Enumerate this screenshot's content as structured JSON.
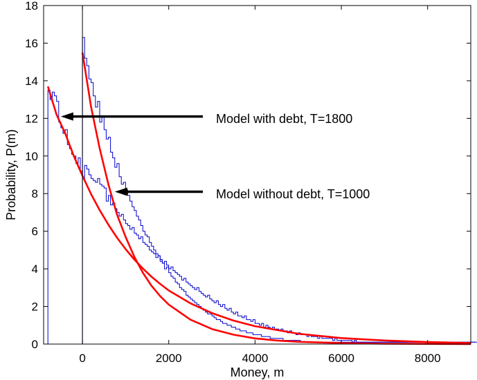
{
  "chart_data": {
    "type": "line",
    "title": "",
    "xlabel": "Money, m",
    "ylabel": "Probability, P(m)",
    "xlim": [
      -900,
      9000
    ],
    "ylim": [
      0,
      18
    ],
    "x_ticks": [
      0,
      2000,
      4000,
      6000,
      8000
    ],
    "y_ticks": [
      0,
      2,
      4,
      6,
      8,
      10,
      12,
      14,
      16,
      18
    ],
    "grid": false,
    "reference_line_x": 0,
    "colors": {
      "histogram": "#0000cc",
      "fit": "#ff0000",
      "axes": "#000000"
    },
    "series": [
      {
        "kind": "histogram",
        "x_start": -800,
        "bin_width": 50,
        "values": [
          13.5,
          13.0,
          13.4,
          13.2,
          12.9,
          11.8,
          11.5,
          11.2,
          11.4,
          10.6,
          10.4,
          10.1,
          10.0,
          9.6,
          9.9,
          9.2,
          8.8,
          9.5,
          9.3,
          9.0,
          8.8,
          8.7,
          8.6,
          8.8,
          8.5,
          8.4,
          8.3,
          7.6,
          7.9,
          7.4,
          7.5,
          7.2,
          7.0,
          6.8,
          6.9,
          6.6,
          6.4,
          6.3,
          6.1,
          6.2,
          5.9,
          5.8,
          5.6,
          5.7,
          5.4,
          5.3,
          5.2,
          5.0,
          4.9,
          4.8,
          4.6,
          4.7,
          4.5,
          4.3,
          4.4,
          4.2,
          4.0,
          4.1,
          3.9,
          3.8,
          3.7,
          3.6,
          3.4,
          3.5,
          3.3,
          3.2,
          3.1,
          3.0,
          2.9,
          3.0,
          2.8,
          2.7,
          2.6,
          2.5,
          2.6,
          2.4,
          2.3,
          2.2,
          2.3,
          2.1,
          2.0,
          2.1,
          1.9,
          1.8,
          1.9,
          1.7,
          1.6,
          1.7,
          1.5,
          1.5,
          1.4,
          1.5,
          1.3,
          1.3,
          1.2,
          1.3,
          1.1,
          1.1,
          1.0,
          1.1,
          0.9,
          1.0,
          0.9,
          0.8,
          0.9,
          0.8,
          0.8,
          0.7,
          0.8,
          0.7,
          0.7,
          0.6,
          0.7,
          0.6,
          0.6,
          0.5,
          0.6,
          0.5,
          0.5,
          0.5,
          0.4,
          0.5,
          0.4,
          0.4,
          0.4,
          0.3,
          0.4,
          0.3,
          0.3,
          0.3,
          0.3,
          0.3,
          0.2,
          0.3,
          0.2,
          0.2,
          0.2,
          0.2,
          0.2,
          0.2,
          0.2,
          0.1,
          0.2,
          0.1,
          0.1,
          0.1,
          0.1,
          0.1,
          0.1,
          0.1,
          0.1,
          0.1,
          0.1,
          0.1,
          0.1,
          0.1,
          0.1,
          0.1,
          0.1,
          0.1,
          0.1,
          0.1,
          0.1,
          0.1,
          0.1,
          0.1,
          0.1,
          0.1,
          0.1,
          0.1,
          0.1,
          0.1,
          0.1,
          0.1,
          0.1,
          0.1,
          0.1,
          0.1,
          0.1,
          0.1,
          0.1,
          0.1,
          0.1,
          0.1,
          0.1,
          0.1,
          0.1,
          0.1,
          0.1,
          0.1,
          0.1,
          0.1,
          0.1,
          0.1,
          0.1,
          0.1,
          0.1,
          0.1,
          0.1,
          0.1
        ]
      },
      {
        "kind": "histogram",
        "x_start": 0,
        "bin_width": 50,
        "values": [
          16.3,
          15.2,
          14.8,
          14.1,
          13.9,
          13.2,
          12.6,
          12.9,
          11.8,
          12.1,
          11.4,
          10.9,
          11.0,
          10.2,
          9.9,
          9.4,
          9.6,
          8.9,
          8.5,
          8.6,
          8.2,
          7.9,
          7.6,
          7.3,
          7.1,
          6.8,
          6.6,
          6.3,
          6.0,
          5.8,
          5.7,
          5.4,
          5.2,
          5.0,
          4.8,
          4.7,
          4.4,
          4.3,
          4.0,
          4.1,
          3.8,
          3.6,
          3.5,
          3.3,
          3.2,
          3.0,
          2.9,
          2.8,
          2.6,
          2.5,
          2.4,
          2.3,
          2.2,
          2.1,
          2.0,
          1.9,
          1.8,
          1.7,
          1.6,
          1.6,
          1.5,
          1.4,
          1.3,
          1.3,
          1.2,
          1.1,
          1.1,
          1.0,
          1.0,
          0.9,
          0.9,
          0.8,
          0.8,
          0.7,
          0.7,
          0.7,
          0.6,
          0.6,
          0.6,
          0.5,
          0.5,
          0.5,
          0.5,
          0.4,
          0.4,
          0.4,
          0.4,
          0.3,
          0.3,
          0.3,
          0.3,
          0.3,
          0.3,
          0.2,
          0.2,
          0.2,
          0.2,
          0.2,
          0.2,
          0.2,
          0.2,
          0.1,
          0.1,
          0.1,
          0.1,
          0.1,
          0.1,
          0.1,
          0.1,
          0.1,
          0.1,
          0.1,
          0.1,
          0.1,
          0.1,
          0.1,
          0.1,
          0.1,
          0.1,
          0.1,
          0.1,
          0.1,
          0.1,
          0.1,
          0.1,
          0.1,
          0.1,
          0.1,
          0.1,
          0.1,
          0.1,
          0.1,
          0.1,
          0.1,
          0.1,
          0.1,
          0.1,
          0.1,
          0.1,
          0.1,
          0.1,
          0.1,
          0.1,
          0.1,
          0.1,
          0.1,
          0.1,
          0.1,
          0.1,
          0.1,
          0.1,
          0.1,
          0.1,
          0.1,
          0.1,
          0.1,
          0.1,
          0.1,
          0.1,
          0.1,
          0.1,
          0.1,
          0.1,
          0.1,
          0.1,
          0.1,
          0.1,
          0.1,
          0.1,
          0.1,
          0.1,
          0.1,
          0.1,
          0.1,
          0.1,
          0.1,
          0.1,
          0.1,
          0.1,
          0.1,
          0.1,
          0.1
        ]
      },
      {
        "kind": "fit",
        "x": [
          -800,
          -600,
          -400,
          -200,
          0,
          200,
          400,
          600,
          800,
          1000,
          1200,
          1400,
          1600,
          1800,
          2000,
          2500,
          3000,
          3500,
          4000,
          5000,
          6000,
          7000,
          8000,
          9000
        ],
        "values": [
          13.7,
          12.2,
          11.2,
          10.0,
          8.95,
          7.97,
          7.12,
          6.35,
          5.66,
          5.05,
          4.5,
          4.02,
          3.58,
          3.2,
          2.85,
          2.17,
          1.65,
          1.25,
          0.95,
          0.55,
          0.32,
          0.19,
          0.11,
          0.06
        ]
      },
      {
        "kind": "fit",
        "x": [
          0,
          200,
          400,
          600,
          800,
          1000,
          1200,
          1400,
          1600,
          1800,
          2000,
          2500,
          3000,
          3500,
          4000,
          4500,
          5000,
          6000,
          7000,
          8000,
          9000
        ],
        "values": [
          15.5,
          12.6,
          10.4,
          8.5,
          6.9,
          5.7,
          4.65,
          3.8,
          3.1,
          2.55,
          2.1,
          1.3,
          0.8,
          0.5,
          0.3,
          0.19,
          0.12,
          0.05,
          0.02,
          0.01,
          0.0
        ]
      }
    ],
    "annotations": [
      {
        "text": "Model with debt, T=1800",
        "arrow_to": [
          -500,
          12.1
        ]
      },
      {
        "text": "Model without debt, T=1000",
        "arrow_to": [
          750,
          8.1
        ]
      }
    ]
  }
}
